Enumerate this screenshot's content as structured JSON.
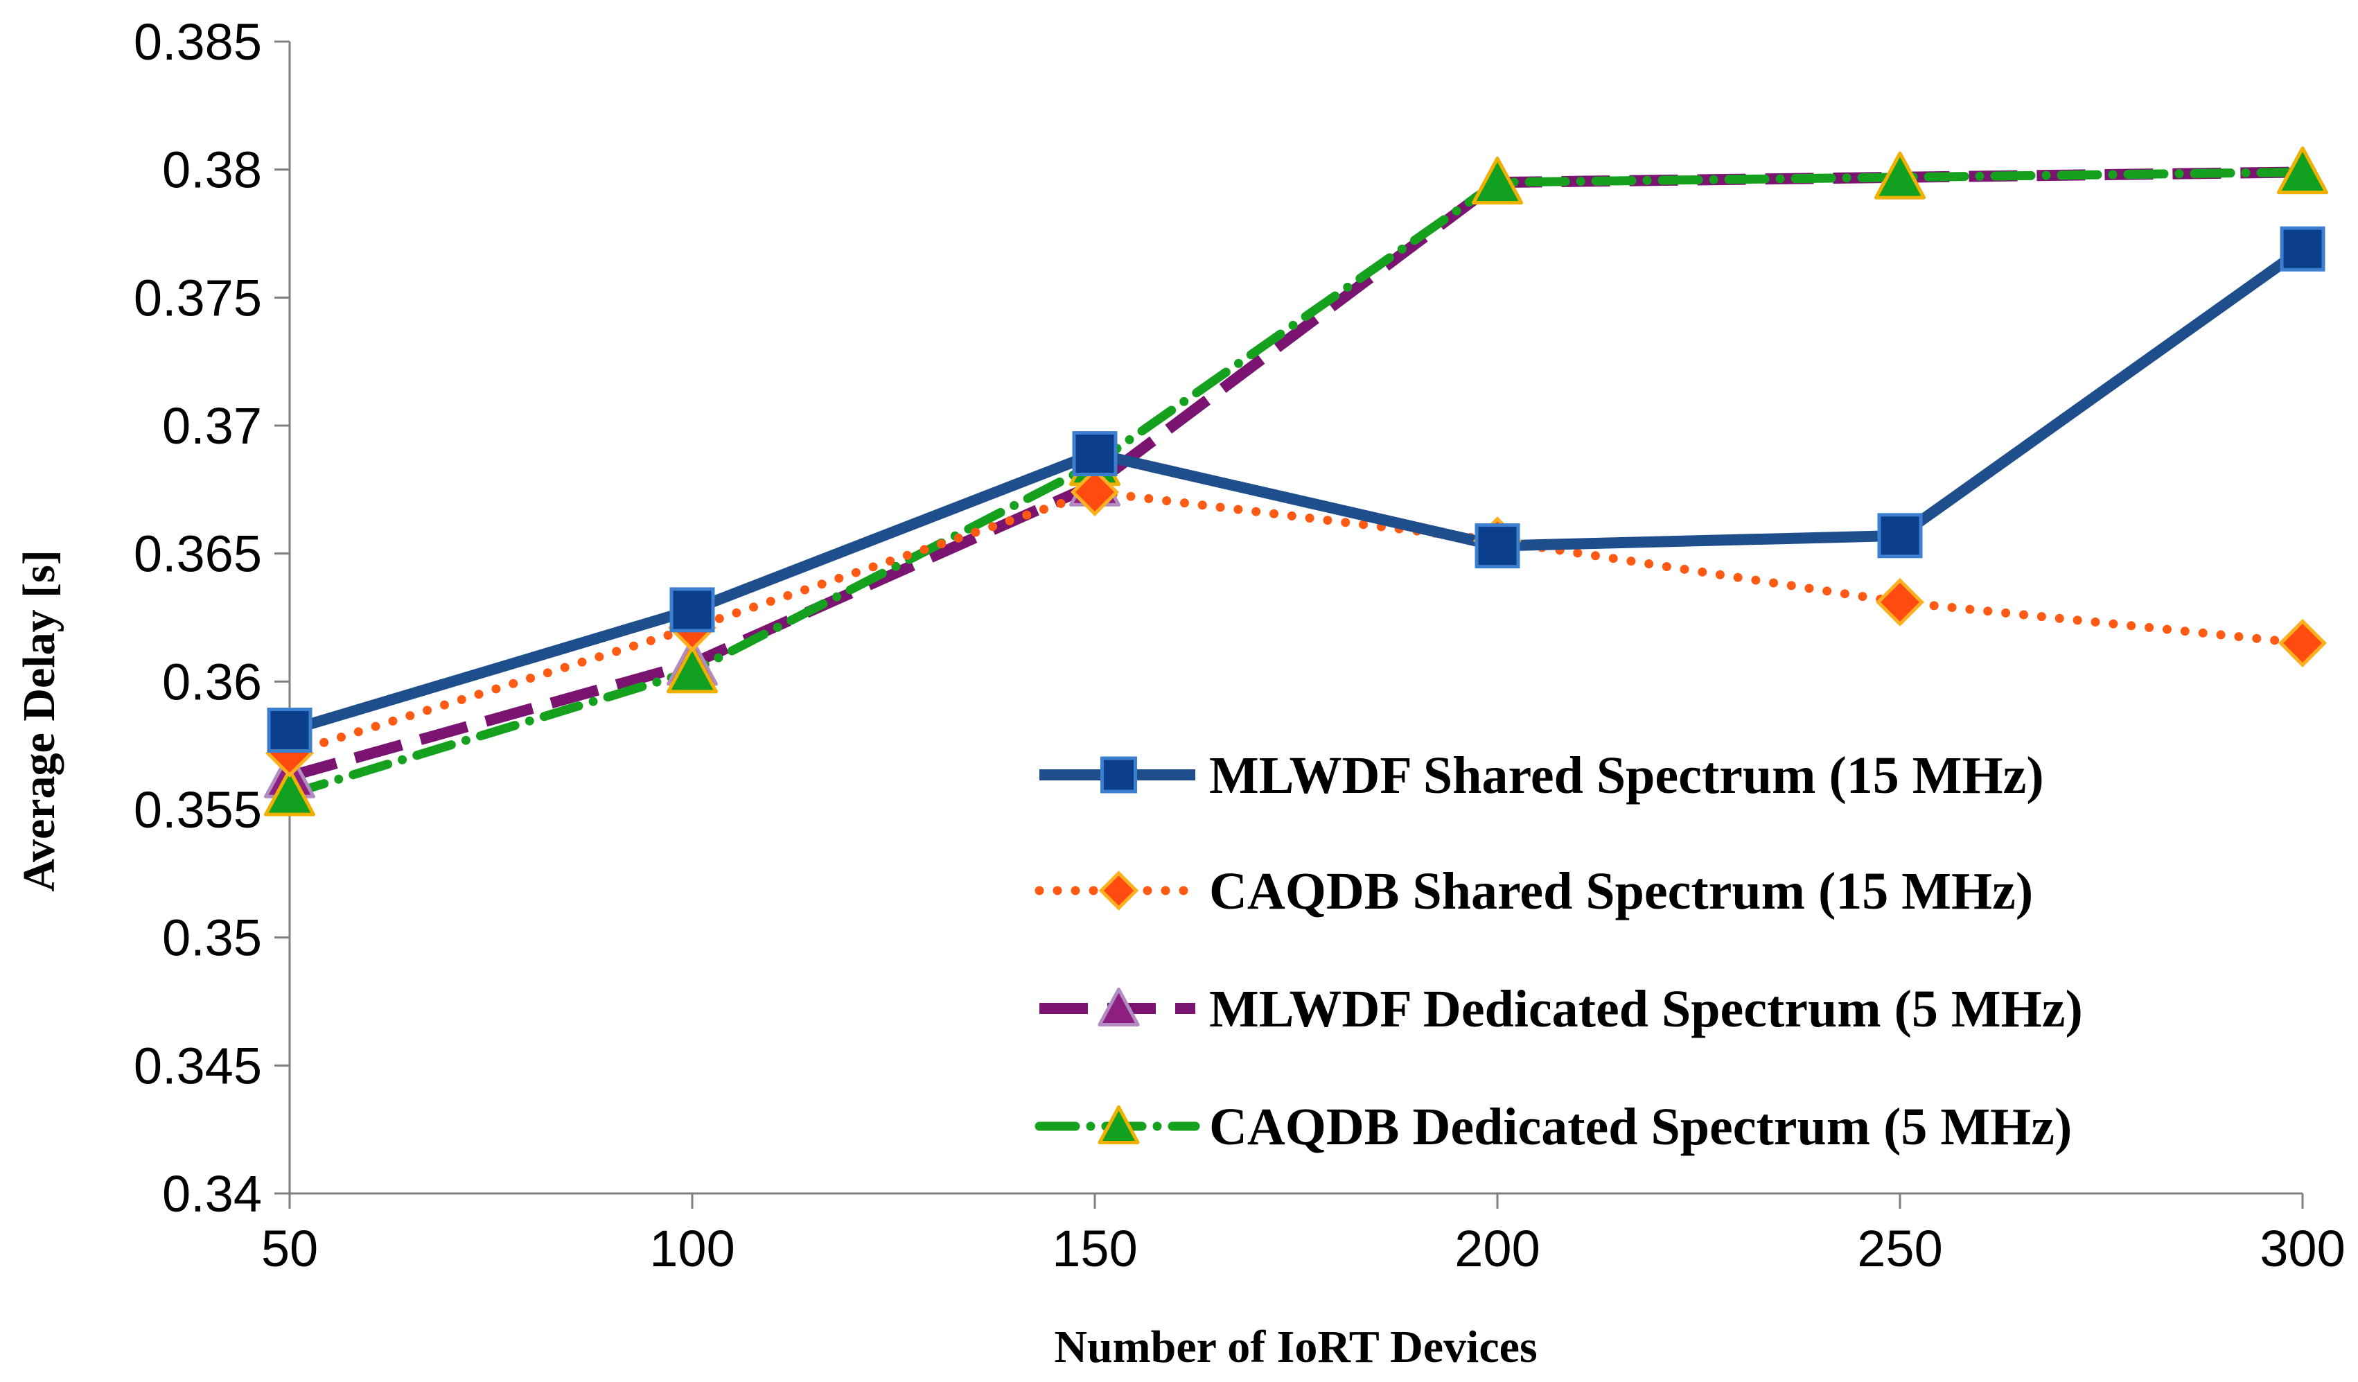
{
  "chart_data": {
    "type": "line",
    "title": "",
    "xlabel": "Number of IoRT Devices",
    "ylabel": "Average Delay [s]",
    "x": [
      50,
      100,
      150,
      200,
      250,
      300
    ],
    "xticks": [
      "50",
      "100",
      "150",
      "200",
      "250",
      "300"
    ],
    "ylim": [
      0.34,
      0.385
    ],
    "yticks": [
      "0.34",
      "0.345",
      "0.35",
      "0.355",
      "0.36",
      "0.365",
      "0.37",
      "0.375",
      "0.38",
      "0.385"
    ],
    "grid": false,
    "legend_position": "bottom-right",
    "series": [
      {
        "name": "MLWDF Shared Spectrum (15 MHz)",
        "values": [
          0.3581,
          0.3628,
          0.3689,
          0.3653,
          0.3657,
          0.3769
        ],
        "color": "#1F4E8C",
        "marker_fill": "#0B3F8C",
        "marker_stroke": "#3C7FD0",
        "marker": "square",
        "dash": "solid"
      },
      {
        "name": "CAQDB Shared Spectrum (15 MHz)",
        "values": [
          0.3572,
          0.3621,
          0.3674,
          0.3655,
          0.3631,
          0.3615
        ],
        "color": "#FF5A14",
        "marker_fill": "#FF4A10",
        "marker_stroke": "#FFB020",
        "marker": "diamond",
        "dash": "dot"
      },
      {
        "name": "MLWDF Dedicated Spectrum (5 MHz)",
        "values": [
          0.3563,
          0.3607,
          0.3677,
          0.3795,
          0.3797,
          0.3799
        ],
        "color": "#7A1470",
        "marker_fill": "#8C1F80",
        "marker_stroke": "#B08CC0",
        "marker": "triangle",
        "dash": "longdash"
      },
      {
        "name": "CAQDB Dedicated Spectrum (5 MHz)",
        "values": [
          0.3556,
          0.3604,
          0.3685,
          0.3795,
          0.3797,
          0.3799
        ],
        "color": "#15A01E",
        "marker_fill": "#12A020",
        "marker_stroke": "#F0B000",
        "marker": "triangle",
        "dash": "dashdot"
      }
    ]
  }
}
